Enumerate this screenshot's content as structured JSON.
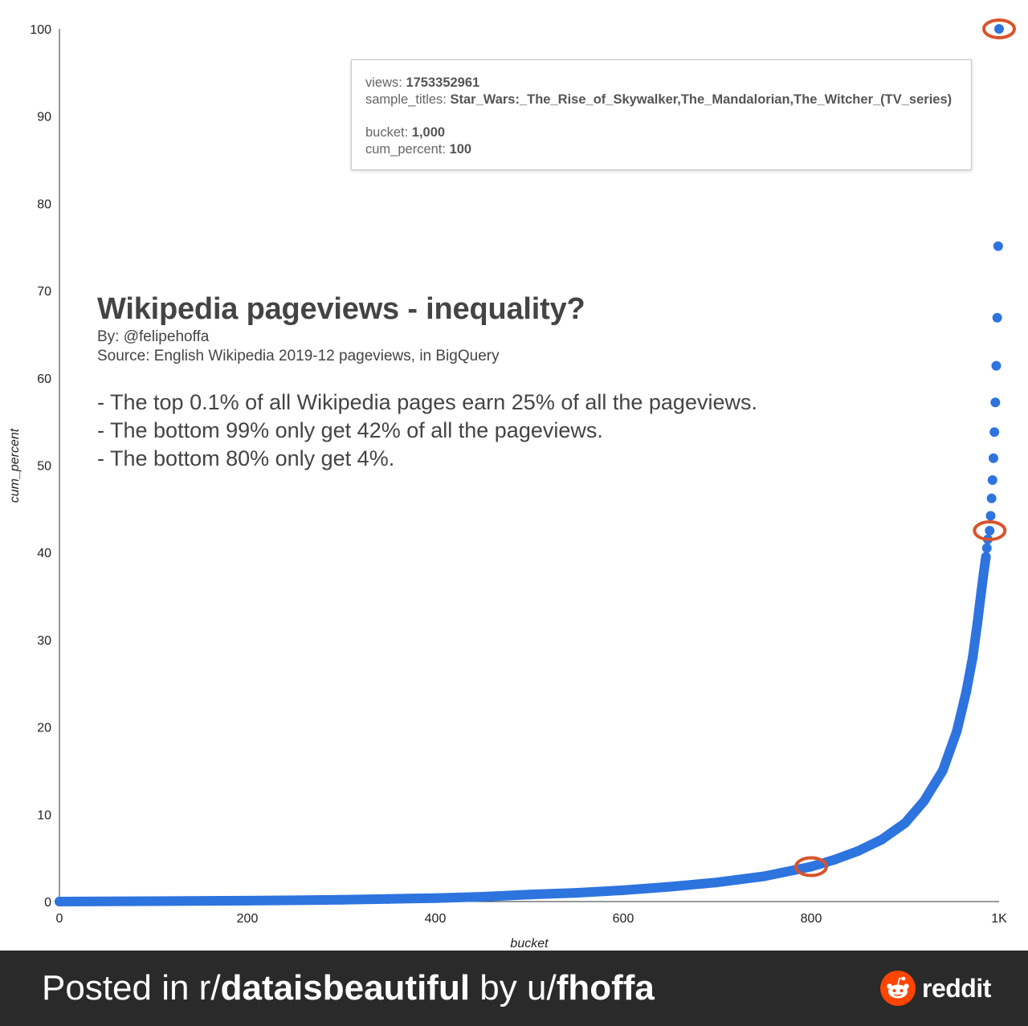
{
  "chart_data": {
    "type": "scatter",
    "xlabel": "bucket",
    "ylabel": "cum_percent",
    "xlim": [
      0,
      1000
    ],
    "ylim": [
      0,
      100
    ],
    "x_ticks": [
      {
        "value": 0,
        "label": "0"
      },
      {
        "value": 200,
        "label": "200"
      },
      {
        "value": 400,
        "label": "400"
      },
      {
        "value": 600,
        "label": "600"
      },
      {
        "value": 800,
        "label": "800"
      },
      {
        "value": 1000,
        "label": "1K"
      }
    ],
    "y_ticks": [
      {
        "value": 0,
        "label": "0"
      },
      {
        "value": 10,
        "label": "10"
      },
      {
        "value": 20,
        "label": "20"
      },
      {
        "value": 30,
        "label": "30"
      },
      {
        "value": 40,
        "label": "40"
      },
      {
        "value": 50,
        "label": "50"
      },
      {
        "value": 60,
        "label": "60"
      },
      {
        "value": 70,
        "label": "70"
      },
      {
        "value": 80,
        "label": "80"
      },
      {
        "value": 90,
        "label": "90"
      },
      {
        "value": 100,
        "label": "100"
      }
    ],
    "grid": false,
    "point_color": "#2e74df",
    "highlight_color": "#d9532b",
    "points": [
      {
        "x": 0,
        "y": 0
      },
      {
        "x": 100,
        "y": 0.05
      },
      {
        "x": 200,
        "y": 0.1
      },
      {
        "x": 300,
        "y": 0.2
      },
      {
        "x": 350,
        "y": 0.3
      },
      {
        "x": 400,
        "y": 0.4
      },
      {
        "x": 450,
        "y": 0.55
      },
      {
        "x": 500,
        "y": 0.8
      },
      {
        "x": 550,
        "y": 1.0
      },
      {
        "x": 600,
        "y": 1.3
      },
      {
        "x": 650,
        "y": 1.7
      },
      {
        "x": 700,
        "y": 2.2
      },
      {
        "x": 750,
        "y": 2.9
      },
      {
        "x": 800,
        "y": 4
      },
      {
        "x": 825,
        "y": 4.8
      },
      {
        "x": 850,
        "y": 5.8
      },
      {
        "x": 875,
        "y": 7.1
      },
      {
        "x": 900,
        "y": 9.0
      },
      {
        "x": 920,
        "y": 11.5
      },
      {
        "x": 940,
        "y": 15
      },
      {
        "x": 955,
        "y": 19.5
      },
      {
        "x": 965,
        "y": 24
      },
      {
        "x": 972,
        "y": 28
      },
      {
        "x": 977,
        "y": 32
      },
      {
        "x": 981,
        "y": 35.5
      },
      {
        "x": 984,
        "y": 38
      },
      {
        "x": 986,
        "y": 39.5
      },
      {
        "x": 987,
        "y": 40.5
      },
      {
        "x": 988,
        "y": 41.5
      },
      {
        "x": 990,
        "y": 42.5
      },
      {
        "x": 991,
        "y": 44.2
      },
      {
        "x": 992,
        "y": 46.2
      },
      {
        "x": 993,
        "y": 48.3
      },
      {
        "x": 994,
        "y": 50.8
      },
      {
        "x": 995,
        "y": 53.8
      },
      {
        "x": 996,
        "y": 57.2
      },
      {
        "x": 997,
        "y": 61.4
      },
      {
        "x": 998,
        "y": 66.9
      },
      {
        "x": 999,
        "y": 75.1
      },
      {
        "x": 1000,
        "y": 100
      }
    ],
    "highlights": [
      {
        "x": 800,
        "y": 4
      },
      {
        "x": 990,
        "y": 42.5
      },
      {
        "x": 1000,
        "y": 100
      }
    ],
    "tooltip": {
      "views_label": "views: ",
      "views_value": "1753352961",
      "titles_label": "sample_titles: ",
      "titles_value": "Star_Wars:_The_Rise_of_Skywalker,The_Mandalorian,The_Witcher_(TV_series)",
      "bucket_label": "bucket: ",
      "bucket_value": "1,000",
      "cum_label": "cum_percent: ",
      "cum_value": "100"
    },
    "annotation": {
      "title": "Wikipedia pageviews - inequality?",
      "byline": "By: @felipehoffa",
      "source": "Source: English Wikipedia 2019-12 pageviews, in BigQuery",
      "notes": [
        "- The top 0.1% of all Wikipedia pages earn 25% of all the pageviews.",
        "- The bottom 99% only get 42% of all the pageviews.",
        "- The bottom 80% only get 4%."
      ]
    }
  },
  "footer": {
    "posted_prefix": "Posted in r/",
    "subreddit": "dataisbeautiful",
    "by_text": " by u/",
    "user": "fhoffa",
    "brand": "reddit"
  }
}
